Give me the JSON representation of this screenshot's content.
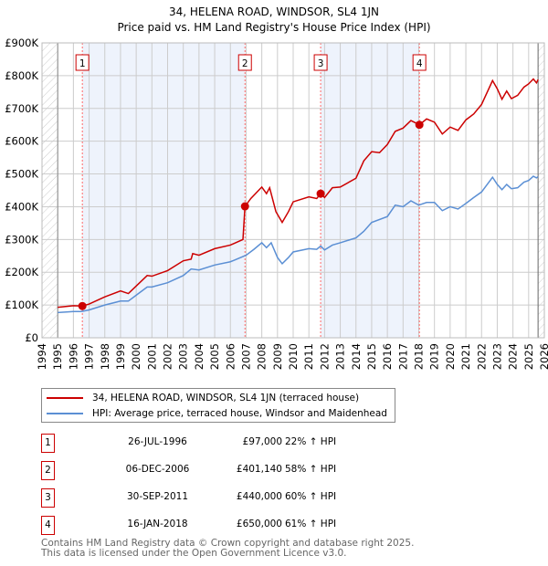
{
  "chart_data": {
    "type": "line",
    "title": "34, HELENA ROAD, WINDSOR, SL4 1JN",
    "subtitle": "Price paid vs. HM Land Registry's House Price Index (HPI)",
    "xlim": [
      1994,
      2026
    ],
    "ylim": [
      0,
      900000
    ],
    "y_ticks": [
      "£0",
      "£100K",
      "£200K",
      "£300K",
      "£400K",
      "£500K",
      "£600K",
      "£700K",
      "£800K",
      "£900K"
    ],
    "x_ticks": [
      "1994",
      "1995",
      "1996",
      "1997",
      "1998",
      "1999",
      "2000",
      "2001",
      "2002",
      "2003",
      "2004",
      "2005",
      "2006",
      "2007",
      "2008",
      "2009",
      "2010",
      "2011",
      "2012",
      "2013",
      "2014",
      "2015",
      "2016",
      "2017",
      "2018",
      "2019",
      "2020",
      "2021",
      "2022",
      "2023",
      "2024",
      "2025",
      "2026"
    ],
    "grid": true,
    "colors": {
      "property": "#cc0000",
      "hpi": "#5b8fd4",
      "band": "#eef3fc"
    },
    "series": [
      {
        "name": "34, HELENA ROAD, WINDSOR, SL4 1JN (terraced house)",
        "key": "property",
        "points": [
          [
            1995,
            93
          ],
          [
            1996,
            98
          ],
          [
            1996.57,
            97
          ],
          [
            1997,
            103
          ],
          [
            1998,
            125
          ],
          [
            1999,
            143
          ],
          [
            1999.5,
            135
          ],
          [
            2000,
            158
          ],
          [
            2000.7,
            190
          ],
          [
            2001,
            188
          ],
          [
            2002,
            205
          ],
          [
            2003,
            235
          ],
          [
            2003.5,
            240
          ],
          [
            2003.6,
            257
          ],
          [
            2004,
            252
          ],
          [
            2005,
            272
          ],
          [
            2006,
            283
          ],
          [
            2006.8,
            300
          ],
          [
            2006.93,
            401
          ],
          [
            2007.3,
            425
          ],
          [
            2008,
            460
          ],
          [
            2008.3,
            440
          ],
          [
            2008.5,
            458
          ],
          [
            2008.9,
            385
          ],
          [
            2009.3,
            352
          ],
          [
            2009.7,
            385
          ],
          [
            2010,
            415
          ],
          [
            2011,
            430
          ],
          [
            2011.5,
            425
          ],
          [
            2011.75,
            440
          ],
          [
            2012,
            428
          ],
          [
            2012.5,
            458
          ],
          [
            2013,
            460
          ],
          [
            2014,
            487
          ],
          [
            2014.5,
            540
          ],
          [
            2015,
            568
          ],
          [
            2015.5,
            565
          ],
          [
            2016,
            590
          ],
          [
            2016.5,
            630
          ],
          [
            2017,
            640
          ],
          [
            2017.5,
            663
          ],
          [
            2018.04,
            650
          ],
          [
            2018.5,
            668
          ],
          [
            2019,
            658
          ],
          [
            2019.5,
            622
          ],
          [
            2020,
            643
          ],
          [
            2020.5,
            633
          ],
          [
            2021,
            665
          ],
          [
            2021.5,
            683
          ],
          [
            2022,
            712
          ],
          [
            2022.7,
            785
          ],
          [
            2023,
            760
          ],
          [
            2023.3,
            728
          ],
          [
            2023.6,
            753
          ],
          [
            2023.9,
            730
          ],
          [
            2024.3,
            740
          ],
          [
            2024.7,
            765
          ],
          [
            2025,
            775
          ],
          [
            2025.3,
            790
          ],
          [
            2025.5,
            778
          ],
          [
            2025.6,
            788
          ]
        ]
      },
      {
        "name": "HPI: Average price, terraced house, Windsor and Maidenhead",
        "key": "hpi",
        "points": [
          [
            1995,
            77
          ],
          [
            1996,
            80
          ],
          [
            1996.5,
            80
          ],
          [
            1997,
            85
          ],
          [
            1998,
            100
          ],
          [
            1999,
            112
          ],
          [
            1999.5,
            112
          ],
          [
            2000,
            130
          ],
          [
            2000.7,
            155
          ],
          [
            2001,
            155
          ],
          [
            2002,
            168
          ],
          [
            2003,
            190
          ],
          [
            2003.5,
            210
          ],
          [
            2004,
            207
          ],
          [
            2005,
            222
          ],
          [
            2006,
            232
          ],
          [
            2007,
            252
          ],
          [
            2007.5,
            270
          ],
          [
            2008,
            290
          ],
          [
            2008.3,
            275
          ],
          [
            2008.6,
            290
          ],
          [
            2009,
            245
          ],
          [
            2009.3,
            226
          ],
          [
            2009.7,
            245
          ],
          [
            2010,
            262
          ],
          [
            2011,
            272
          ],
          [
            2011.5,
            270
          ],
          [
            2011.75,
            280
          ],
          [
            2012,
            268
          ],
          [
            2012.5,
            283
          ],
          [
            2013,
            290
          ],
          [
            2014,
            305
          ],
          [
            2014.5,
            325
          ],
          [
            2015,
            352
          ],
          [
            2016,
            370
          ],
          [
            2016.5,
            405
          ],
          [
            2017,
            400
          ],
          [
            2017.5,
            418
          ],
          [
            2018,
            405
          ],
          [
            2018.5,
            413
          ],
          [
            2019,
            413
          ],
          [
            2019.5,
            388
          ],
          [
            2020,
            400
          ],
          [
            2020.5,
            393
          ],
          [
            2021,
            410
          ],
          [
            2021.5,
            428
          ],
          [
            2022,
            445
          ],
          [
            2022.7,
            490
          ],
          [
            2023,
            468
          ],
          [
            2023.3,
            452
          ],
          [
            2023.6,
            468
          ],
          [
            2023.9,
            455
          ],
          [
            2024.3,
            458
          ],
          [
            2024.7,
            475
          ],
          [
            2025,
            480
          ],
          [
            2025.3,
            493
          ],
          [
            2025.5,
            488
          ],
          [
            2025.6,
            492
          ]
        ]
      }
    ],
    "sales": [
      {
        "label": "1",
        "x": 1996.57,
        "value": 97000,
        "date": "26-JUL-1996",
        "price": "£97,000",
        "hpi": "22% ↑ HPI"
      },
      {
        "label": "2",
        "x": 2006.93,
        "value": 401140,
        "date": "06-DEC-2006",
        "price": "£401,140",
        "hpi": "58% ↑ HPI"
      },
      {
        "label": "3",
        "x": 2011.75,
        "value": 440000,
        "date": "30-SEP-2011",
        "price": "£440,000",
        "hpi": "60% ↑ HPI"
      },
      {
        "label": "4",
        "x": 2018.04,
        "value": 650000,
        "date": "16-JAN-2018",
        "price": "£650,000",
        "hpi": "61% ↑ HPI"
      }
    ]
  },
  "legend": {
    "property": "34, HELENA ROAD, WINDSOR, SL4 1JN (terraced house)",
    "hpi": "HPI: Average price, terraced house, Windsor and Maidenhead"
  },
  "footer": {
    "line1": "Contains HM Land Registry data © Crown copyright and database right 2025.",
    "line2": "This data is licensed under the Open Government Licence v3.0."
  }
}
